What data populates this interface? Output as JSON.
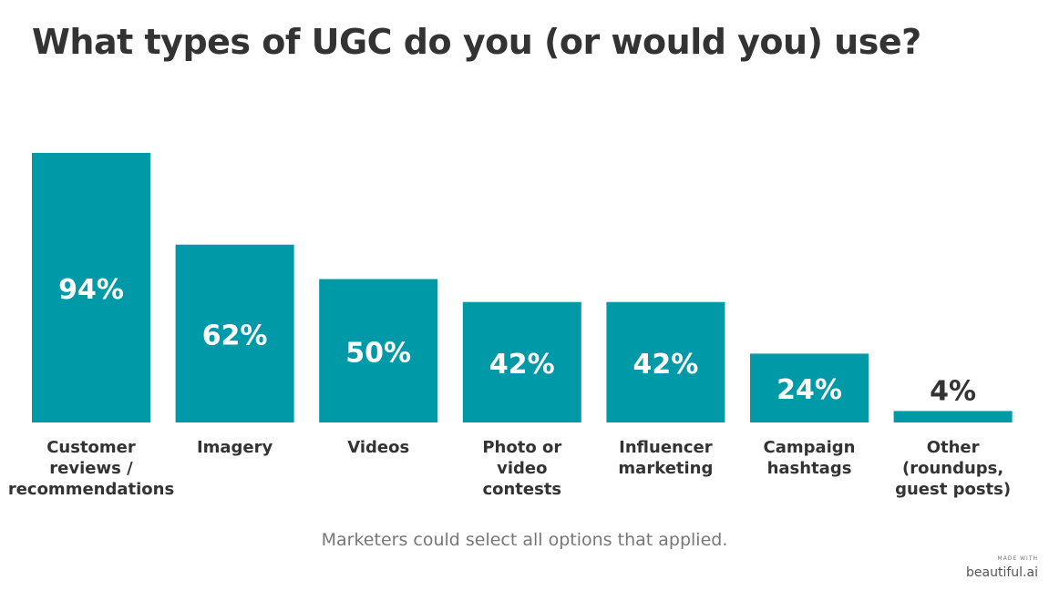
{
  "header": {
    "title": "What types of UGC do you (or would you) use?"
  },
  "chart_data": {
    "type": "bar",
    "categories": [
      [
        "Customer",
        "reviews /",
        "recommendations"
      ],
      [
        "Imagery"
      ],
      [
        "Videos"
      ],
      [
        "Photo or",
        "video",
        "contests"
      ],
      [
        "Influencer",
        "marketing"
      ],
      [
        "Campaign",
        "hashtags"
      ],
      [
        "Other",
        "(roundups,",
        "guest posts)"
      ]
    ],
    "values": [
      94,
      62,
      50,
      42,
      42,
      24,
      4
    ],
    "value_labels": [
      "94%",
      "62%",
      "50%",
      "42%",
      "42%",
      "24%",
      "4%"
    ],
    "ylim": [
      0,
      100
    ],
    "grid": false,
    "legend": "none",
    "bar_color": "#0099A8",
    "label_inside_color": "#ffffff",
    "label_outside_color": "#333333"
  },
  "footer": {
    "note": "Marketers could select all options that applied.",
    "watermark_small": "MADE WITH",
    "watermark_brand": "beautiful.ai"
  }
}
